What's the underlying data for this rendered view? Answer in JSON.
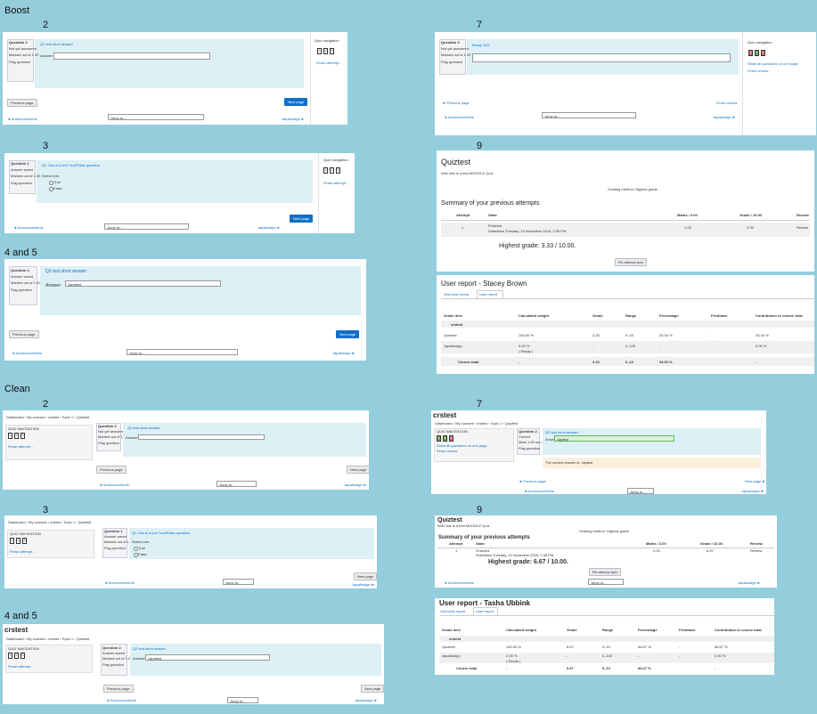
{
  "labels": [
    "Boost",
    "2",
    "7",
    "3",
    "9",
    "4 and 5",
    "Clean",
    "2",
    "7",
    "3",
    "9",
    "4 and 5"
  ],
  "screens": [
    {
      "question": "Question 2",
      "state": "Not yet answered",
      "marks": "Marked out of 1.00",
      "flag": "Flag question",
      "prompt": "Q2 test short answer",
      "answer_label": "Answer:",
      "nav_title": "Quiz navigation",
      "nav": [
        "1",
        "2",
        "3"
      ],
      "finish": "Finish attempt ...",
      "prev": "Previous page",
      "next": "Next page",
      "left": "◄ Announcements",
      "jump": "Jump to...",
      "right": "JapaAssign ►"
    },
    {
      "question": "Question 3",
      "state": "Not yet answered",
      "marks": "Marked out of 1.00",
      "flag": "Flag question",
      "prompt": "Essay 1111",
      "nav_title": "Quiz navigation",
      "nav": [
        "1",
        "2",
        "3"
      ],
      "show_all": "Show all questions on one page",
      "finish": "Finish review",
      "prev": "◄ Previous page",
      "finish_review": "Finish review",
      "left": "◄ Announcements",
      "jump": "Jump to...",
      "right": "JapaAssign ►"
    },
    {
      "question": "Question 1",
      "state": "Answer saved",
      "marks": "Marked out of 1.00",
      "flag": "Flag question",
      "prompt": "Q1. this is a test True/False question",
      "select": "Select one:",
      "options": [
        "True",
        "False"
      ],
      "nav_title": "Quiz navigation",
      "nav": [
        "1",
        "2",
        "3"
      ],
      "finish": "Finish attempt ...",
      "next": "Next page",
      "left": "◄ Announcements",
      "jump": "Jump to...",
      "right": "JapaAssign ►"
    },
    {
      "question": "Question 2",
      "state": "Answer saved",
      "marks": "Marked out of 1.00",
      "flag": "Flag question",
      "prompt": "Q2 test short answer",
      "answer_label": "Answer:",
      "answer": "Japatest",
      "prev": "Previous page",
      "next": "Next page",
      "left": "◄ Announcements",
      "jump": "Jump to...",
      "right": "JapaAssign ►"
    },
    {
      "title": "Quiztest",
      "intro": "hello this is a test MOODLE Quiz",
      "grading": "Grading method: Highest grade",
      "summary": "Summary of your previous attempts",
      "header": [
        "Attempt",
        "State",
        "Marks / 3.00",
        "Grade / 10.00",
        "Review"
      ],
      "row": [
        "1",
        "Finished",
        "Submitted Tuesday, 13 November 2018, 2:35 PM",
        "1.00",
        "3.33",
        "Review"
      ],
      "highest": "Highest grade: 3.33 / 10.00.",
      "reattempt": "Re-attempt quiz"
    },
    {
      "title": "User report - Stacey Brown",
      "tabs": [
        "Overview report",
        "User report"
      ],
      "header": [
        "Grade item",
        "Calculated weight",
        "Grade",
        "Range",
        "Percentage",
        "Feedback",
        "Contribution to course total"
      ],
      "course": "crstest",
      "rows": [
        [
          "Quiztest",
          "100.00 %",
          "3.33",
          "0–10",
          "33.33 %",
          "-",
          "33.33 %"
        ],
        [
          "JapaAssign",
          "0.00 %",
          "-",
          "0–100",
          "-",
          "-",
          "0.00 %"
        ]
      ],
      "empty": "( Empty )",
      "total": [
        "Course total",
        "-",
        "3.33",
        "0–10",
        "33.33 %",
        "-"
      ]
    },
    {
      "breadcrumb": "Dashboard › My courses › crstest › Topic 1 › Quiztest",
      "nav_title": "QUIZ NAVIGATION",
      "nav": [
        "1",
        "2",
        "3"
      ],
      "finish": "Finish attempt ...",
      "question": "Question 2",
      "state": "Not yet answered",
      "marks": "Marked out of 1.00",
      "flag": "Flag question",
      "prompt": "Q2 test short answer",
      "answer_label": "Answer:",
      "prev": "Previous page",
      "next": "Next page",
      "left": "◄ Announcements",
      "jump": "Jump to...",
      "right": "JapaAssign ►"
    },
    {
      "course": "crstest",
      "breadcrumb": "Dashboard › My courses › crstest › Topic 1 › Quiztest",
      "nav_title": "QUIZ NAVIGATION",
      "nav": [
        "1",
        "2",
        "3"
      ],
      "show_all": "Show all questions on one page",
      "finish": "Finish review",
      "question": "Question 2",
      "state": "Correct",
      "marks": "Mark 1.00 out of 1.00",
      "flag": "Flag question",
      "prompt": "Q2 test short answer",
      "answer_label": "Answer:",
      "answer": "Japtest",
      "feedback": "The correct answer is: Japtest",
      "prev": "◄ Previous page",
      "next": "Next page ►",
      "left": "◄ Announcements",
      "jump": "Jump to...",
      "right": "JapaAssign ►"
    },
    {
      "breadcrumb": "Dashboard › My courses › crstest › Topic 1 › Quiztest",
      "nav_title": "QUIZ NAVIGATION",
      "nav": [
        "1",
        "2",
        "3"
      ],
      "finish": "Finish attempt ...",
      "question": "Question 1",
      "state": "Answer saved",
      "marks": "Marked out of 1.00",
      "flag": "Flag question",
      "prompt": "Q1. this is a test True/False question",
      "select": "Select one:",
      "options": [
        "True",
        "False"
      ],
      "next": "Next page",
      "left": "◄ Announcements",
      "jump": "Jump to...",
      "right": "JapaAssign ►"
    },
    {
      "title": "Quiztest",
      "intro": "hello this is a test MOODLE Quiz",
      "grading": "Grading method: Highest grade",
      "summary": "Summary of your previous attempts",
      "header": [
        "Attempt",
        "State",
        "Marks / 3.00",
        "Grade / 10.00",
        "Review"
      ],
      "row": [
        "1",
        "Finished",
        "Submitted Tuesday, 13 November 2018, 2:35 PM",
        "2.00",
        "6.67",
        "Review"
      ],
      "highest": "Highest grade: 6.67 / 10.00.",
      "reattempt": "Re-attempt quiz",
      "left": "◄ Announcements",
      "jump": "Jump to...",
      "right": "JapaAssign ►"
    },
    {
      "course": "crstest",
      "breadcrumb": "Dashboard › My courses › crstest › Topic 1 › Quiztest",
      "nav_title": "QUIZ NAVIGATION",
      "nav": [
        "1",
        "2",
        "3"
      ],
      "finish": "Finish attempt ...",
      "question": "Question 2",
      "state": "Answer saved",
      "marks": "Marked out of 1.00",
      "flag": "Flag question",
      "prompt": "Q2 test short answer",
      "answer_label": "Answer:",
      "answer": "Japatest",
      "prev": "Previous page",
      "next": "Next page",
      "left": "◄ Announcements",
      "jump": "Jump to...",
      "right": "JapaAssign ►"
    },
    {
      "title": "User report - Tasha Ubbink",
      "tabs": [
        "Overview report",
        "User report"
      ],
      "header": [
        "Grade item",
        "Calculated weight",
        "Grade",
        "Range",
        "Percentage",
        "Feedback",
        "Contribution to course total"
      ],
      "course": "crstest",
      "rows": [
        [
          "Quiztest",
          "100.00 %",
          "6.67",
          "0–10",
          "66.67 %",
          "-",
          "66.67 %"
        ],
        [
          "JapaAssign",
          "0.00 %",
          "-",
          "0–100",
          "-",
          "-",
          "0.00 %"
        ]
      ],
      "empty": "( Empty )",
      "total": [
        "Course total",
        "-",
        "6.67",
        "0–10",
        "66.67 %",
        "-"
      ]
    }
  ]
}
